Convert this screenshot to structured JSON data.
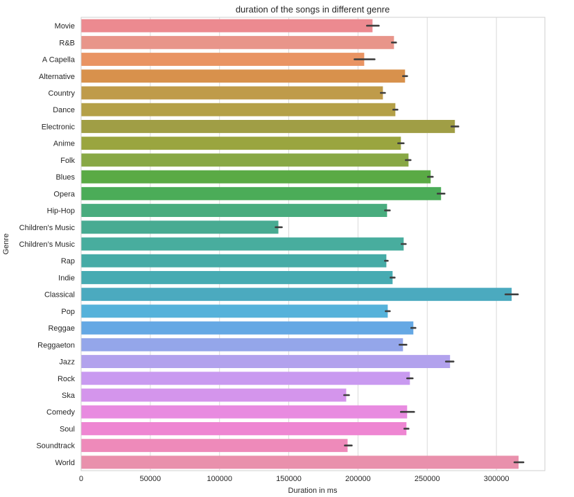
{
  "chart_data": {
    "type": "bar",
    "orientation": "horizontal",
    "title": "duration of the songs in different genre",
    "xlabel": "Duration in ms",
    "ylabel": "Genre",
    "xlim": [
      0,
      335000
    ],
    "xticks": [
      0,
      50000,
      100000,
      150000,
      200000,
      250000,
      300000
    ],
    "grid": true,
    "categories": [
      "Movie",
      "R&B",
      "A Capella",
      "Alternative",
      "Country",
      "Dance",
      "Electronic",
      "Anime",
      "Folk",
      "Blues",
      "Opera",
      "Hip-Hop",
      "Children's Music",
      "Children’s Music",
      "Rap",
      "Indie",
      "Classical",
      "Pop",
      "Reggae",
      "Reggaeton",
      "Jazz",
      "Rock",
      "Ska",
      "Comedy",
      "Soul",
      "Soundtrack",
      "World"
    ],
    "values": [
      210500,
      226000,
      204500,
      234000,
      218000,
      227000,
      270000,
      231000,
      236500,
      252500,
      260000,
      221000,
      142500,
      233000,
      220500,
      225000,
      311000,
      221500,
      240000,
      232500,
      266500,
      237500,
      191500,
      235500,
      235000,
      192500,
      316000
    ],
    "error_low": [
      206500,
      224500,
      197500,
      232500,
      216500,
      225500,
      267500,
      229000,
      234500,
      250500,
      257500,
      219500,
      140500,
      231500,
      219500,
      223500,
      306500,
      220000,
      238500,
      230000,
      263500,
      235500,
      190000,
      231000,
      233500,
      190500,
      313000
    ],
    "error_high": [
      215000,
      227500,
      212000,
      235500,
      219500,
      228500,
      272500,
      233000,
      238000,
      254000,
      262500,
      223000,
      145000,
      234500,
      221500,
      226500,
      315500,
      223000,
      241500,
      235000,
      269000,
      239500,
      193500,
      240500,
      236500,
      195500,
      319500
    ],
    "colors": [
      "#ec8a90",
      "#e8958a",
      "#e99463",
      "#d8914c",
      "#bf9b4a",
      "#b4a047",
      "#a09e45",
      "#9aa53f",
      "#88a845",
      "#5aaa45",
      "#4bac58",
      "#49ac7e",
      "#48ab92",
      "#48ad9e",
      "#46aba6",
      "#47abb2",
      "#4baabf",
      "#55b2da",
      "#65a8e4",
      "#94a6ea",
      "#b2a2ed",
      "#c99af0",
      "#d495ec",
      "#e88be0",
      "#ee86d2",
      "#ee8aba",
      "#e990ac"
    ]
  }
}
